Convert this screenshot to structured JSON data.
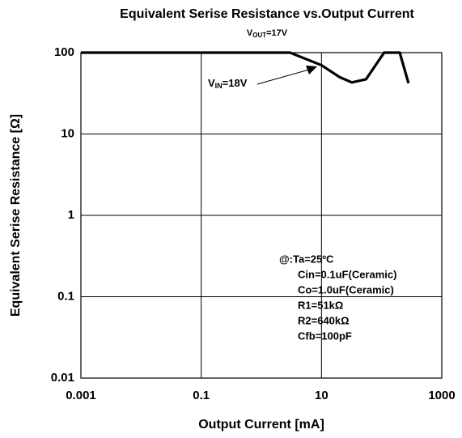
{
  "chart_data": {
    "type": "line",
    "title": "Equivalent Serise Resistance vs.Output Current",
    "subtitle": {
      "base": "V",
      "sub": "OUT",
      "rest": "=17V"
    },
    "x_label": "Output Current [mA]",
    "y_label": "Equivalent Serise Resistance [Ω]",
    "x": [
      0.001,
      3,
      10,
      20,
      32,
      55,
      110,
      200,
      280
    ],
    "series": [
      {
        "name": {
          "base": "V",
          "sub": "IN",
          "rest": "=18V"
        },
        "color": "#000000",
        "values": [
          100,
          100,
          70,
          50,
          43,
          47,
          100,
          100,
          42
        ]
      }
    ],
    "xlim": [
      0.001,
      1000
    ],
    "ylim": [
      0.01,
      100
    ],
    "xticks": [
      0.001,
      0.1,
      10,
      1000
    ],
    "yticks": [
      0.01,
      0.1,
      1,
      10,
      100
    ],
    "log_x": true,
    "log_y": true,
    "grid": true,
    "conditions": [
      "@:Ta=25ºC",
      "Cin=0.1uF(Ceramic)",
      "Co=1.0uF(Ceramic)",
      "R1=51kΩ",
      "R2=640kΩ",
      "Cfb=100pF"
    ]
  }
}
